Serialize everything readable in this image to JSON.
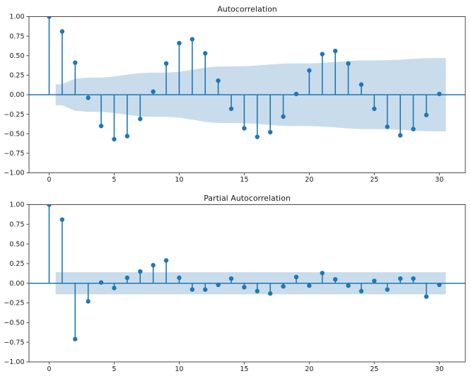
{
  "styles": {
    "accent": "#1f77b4",
    "band_fill": "#c9dcec",
    "spine_color": "#4a4a4a",
    "text_color": "#1a1a1a",
    "background": "#ffffff"
  },
  "chart_data": [
    {
      "type": "stem",
      "title": "Autocorrelation",
      "xlabel": "",
      "ylabel": "",
      "grid": false,
      "legend": null,
      "x": [
        0,
        1,
        2,
        3,
        4,
        5,
        6,
        7,
        8,
        9,
        10,
        11,
        12,
        13,
        14,
        15,
        16,
        17,
        18,
        19,
        20,
        21,
        22,
        23,
        24,
        25,
        26,
        27,
        28,
        29,
        30
      ],
      "values": [
        1.0,
        0.81,
        0.41,
        -0.04,
        -0.4,
        -0.57,
        -0.53,
        -0.31,
        0.04,
        0.4,
        0.66,
        0.71,
        0.53,
        0.18,
        -0.18,
        -0.43,
        -0.54,
        -0.48,
        -0.28,
        0.01,
        0.31,
        0.52,
        0.56,
        0.4,
        0.13,
        -0.18,
        -0.41,
        -0.52,
        -0.44,
        -0.26,
        0.01
      ],
      "band": {
        "x": [
          0.5,
          1,
          2,
          3,
          4,
          5,
          6,
          7,
          8,
          9,
          10,
          11,
          12,
          13,
          14,
          15,
          16,
          17,
          18,
          19,
          20,
          21,
          22,
          23,
          24,
          25,
          26,
          27,
          28,
          29,
          30,
          30.5
        ],
        "upper": [
          0.135,
          0.135,
          0.206,
          0.22,
          0.22,
          0.233,
          0.258,
          0.277,
          0.283,
          0.283,
          0.293,
          0.319,
          0.347,
          0.362,
          0.363,
          0.365,
          0.374,
          0.388,
          0.399,
          0.402,
          0.402,
          0.407,
          0.418,
          0.432,
          0.44,
          0.44,
          0.442,
          0.449,
          0.46,
          0.467,
          0.47,
          0.47
        ]
      },
      "xlim": [
        -1.55,
        32.0
      ],
      "ylim": [
        -1.0,
        1.0
      ],
      "xticks": [
        0,
        5,
        10,
        15,
        20,
        25,
        30
      ],
      "xtick_labels": [
        "0",
        "5",
        "10",
        "15",
        "20",
        "25",
        "30"
      ],
      "yticks": [
        1.0,
        0.75,
        0.5,
        0.25,
        0.0,
        -0.25,
        -0.5,
        -0.75,
        -1.0
      ],
      "ytick_labels": [
        "1.00",
        "0.75",
        "0.50",
        "0.25",
        "0.00",
        "−0.25",
        "−0.50",
        "−0.75",
        "−1.00"
      ]
    },
    {
      "type": "stem",
      "title": "Partial Autocorrelation",
      "xlabel": "",
      "ylabel": "",
      "grid": false,
      "legend": null,
      "x": [
        0,
        1,
        2,
        3,
        4,
        5,
        6,
        7,
        8,
        9,
        10,
        11,
        12,
        13,
        14,
        15,
        16,
        17,
        18,
        19,
        20,
        21,
        22,
        23,
        24,
        25,
        26,
        27,
        28,
        29,
        30
      ],
      "values": [
        1.0,
        0.81,
        -0.71,
        -0.23,
        0.01,
        -0.06,
        0.07,
        0.15,
        0.23,
        0.29,
        0.07,
        -0.08,
        -0.08,
        -0.02,
        0.06,
        -0.05,
        -0.1,
        -0.13,
        -0.04,
        0.08,
        -0.03,
        0.13,
        0.05,
        -0.03,
        -0.1,
        0.03,
        -0.08,
        0.06,
        0.06,
        -0.17,
        -0.02
      ],
      "band": {
        "x": [
          0.5,
          30.5
        ],
        "upper": [
          0.14,
          0.14
        ]
      },
      "xlim": [
        -1.55,
        32.0
      ],
      "ylim": [
        -1.0,
        1.0
      ],
      "xticks": [
        0,
        5,
        10,
        15,
        20,
        25,
        30
      ],
      "xtick_labels": [
        "0",
        "5",
        "10",
        "15",
        "20",
        "25",
        "30"
      ],
      "yticks": [
        1.0,
        0.75,
        0.5,
        0.25,
        0.0,
        -0.25,
        -0.5,
        -0.75,
        -1.0
      ],
      "ytick_labels": [
        "1.00",
        "0.75",
        "0.50",
        "0.25",
        "0.00",
        "−0.25",
        "−0.50",
        "−0.75",
        "−1.00"
      ]
    }
  ]
}
